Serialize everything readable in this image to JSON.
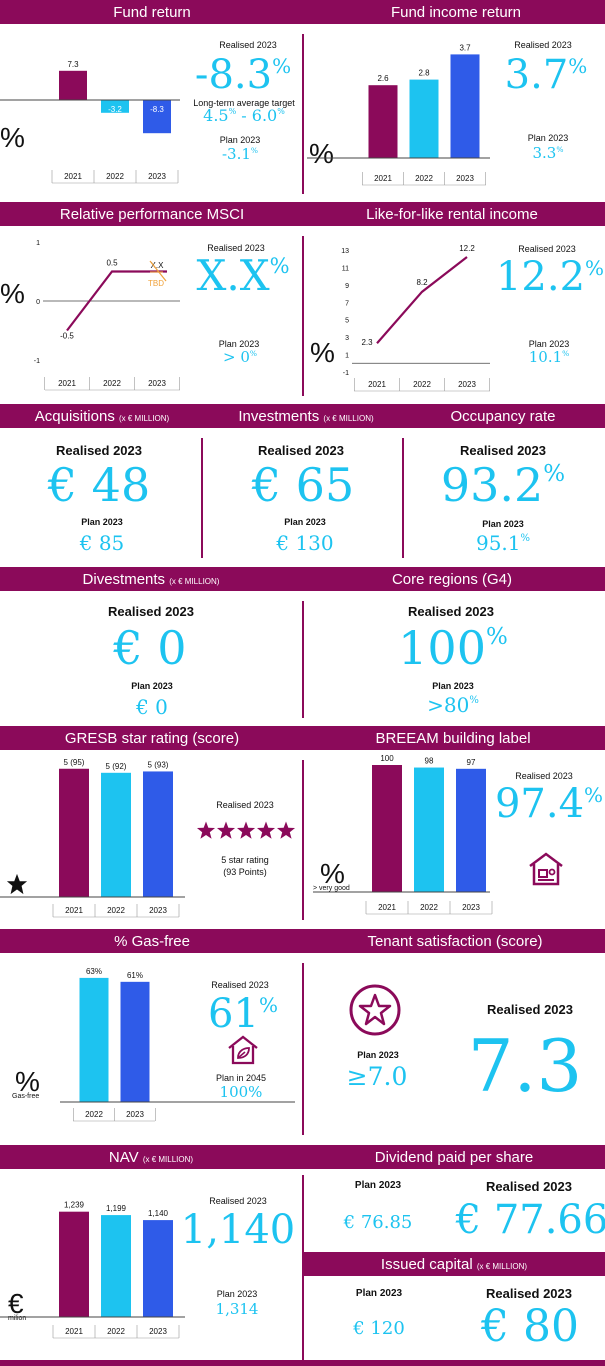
{
  "colors": {
    "brand": "#8b0a5a",
    "cyan": "#1dc3f0",
    "blue": "#2f5be8",
    "orange": "#f0a23b"
  },
  "fund_return": {
    "title": "Fund return",
    "unit": "%",
    "realised_label": "Realised 2023",
    "realised_value": "-8.3",
    "target_label": "Long-term average target",
    "target_low": "4.5",
    "target_high": "6.0",
    "plan_label": "Plan 2023",
    "plan_value": "-3.1"
  },
  "fund_income_return": {
    "title": "Fund income return",
    "unit": "%",
    "realised_label": "Realised 2023",
    "realised_value": "3.7",
    "plan_label": "Plan 2023",
    "plan_value": "3.3"
  },
  "msci": {
    "title": "Relative performance MSCI",
    "unit": "%",
    "realised_label": "Realised 2023",
    "realised_value": "X.X",
    "plan_label": "Plan 2023",
    "plan_value": "> 0",
    "tbd_label": "TBD",
    "xx_label": "X.X"
  },
  "lfl": {
    "title": "Like-for-like rental income",
    "unit": "%",
    "realised_label": "Realised 2023",
    "realised_value": "12.2",
    "plan_label": "Plan 2023",
    "plan_value": "10.1"
  },
  "acquisitions": {
    "title": "Acquisitions",
    "unit_note": "(x € MILLION)",
    "realised_label": "Realised 2023",
    "realised_value": "€ 48",
    "plan_label": "Plan 2023",
    "plan_value": "€ 85"
  },
  "investments": {
    "title": "Investments",
    "unit_note": "(x € MILLION)",
    "realised_label": "Realised 2023",
    "realised_value": "€ 65",
    "plan_label": "Plan 2023",
    "plan_value": "€ 130"
  },
  "occupancy": {
    "title": "Occupancy rate",
    "realised_label": "Realised 2023",
    "realised_value": "93.2",
    "plan_label": "Plan 2023",
    "plan_value": "95.1"
  },
  "divestments": {
    "title": "Divestments",
    "unit_note": "(x € MILLION)",
    "realised_label": "Realised 2023",
    "realised_value": "€ 0",
    "plan_label": "Plan 2023",
    "plan_value": "€ 0"
  },
  "core_regions": {
    "title": "Core regions (G4)",
    "realised_label": "Realised 2023",
    "realised_value": "100",
    "plan_label": "Plan 2023",
    "plan_value": ">80"
  },
  "gresb": {
    "title": "GRESB star rating (score)",
    "realised_label": "Realised 2023",
    "rating_text": "5 star rating",
    "points_text": "(93 Points)",
    "stars": 5
  },
  "breeam": {
    "title": "BREEAM building label",
    "unit": "%",
    "unit_sub": "> very good",
    "realised_label": "Realised 2023",
    "realised_value": "97.4"
  },
  "gas_free": {
    "title": "% Gas-free",
    "unit": "%",
    "unit_sub": "Gas-free",
    "realised_label": "Realised 2023",
    "realised_value": "61",
    "plan_label": "Plan in 2045",
    "plan_value": "100%"
  },
  "tenant": {
    "title": "Tenant satisfaction (score)",
    "plan_label": "Plan 2023",
    "plan_value": "≥7.0",
    "realised_label": "Realised 2023",
    "realised_value": "7.3"
  },
  "nav": {
    "title": "NAV",
    "unit_note": "(x € MILLION)",
    "unit": "€",
    "unit_sub": "milion",
    "realised_label": "Realised 2023",
    "realised_value": "1,140",
    "plan_label": "Plan 2023",
    "plan_value": "1,314"
  },
  "dividend": {
    "title": "Dividend paid per share",
    "plan_label": "Plan 2023",
    "plan_value": "€ 76.85",
    "realised_label": "Realised 2023",
    "realised_value": "€ 77.66"
  },
  "issued": {
    "title": "Issued capital",
    "unit_note": "(x € MILLION)",
    "plan_label": "Plan 2023",
    "plan_value": "€ 120",
    "realised_label": "Realised 2023",
    "realised_value": "€ 80"
  },
  "chart_data": [
    {
      "id": "fund_return",
      "type": "bar",
      "categories": [
        "2021",
        "2022",
        "2023"
      ],
      "values": [
        7.3,
        -3.2,
        -8.3
      ],
      "labels": [
        "7.3",
        "-3.2",
        "-8.3"
      ]
    },
    {
      "id": "fund_income_return",
      "type": "bar",
      "categories": [
        "2021",
        "2022",
        "2023"
      ],
      "values": [
        2.6,
        2.8,
        3.7
      ],
      "labels": [
        "2.6",
        "2.8",
        "3.7"
      ]
    },
    {
      "id": "msci",
      "type": "line",
      "categories": [
        "2021",
        "2022",
        "2023"
      ],
      "values": [
        -0.5,
        0.5,
        0.5
      ],
      "labels": [
        "-0.5",
        "0.5",
        ""
      ],
      "yticks": [
        "1",
        "0",
        "-1"
      ],
      "ylim": [
        -1,
        1
      ]
    },
    {
      "id": "lfl",
      "type": "line",
      "categories": [
        "2021",
        "2022",
        "2023"
      ],
      "values": [
        2.3,
        8.2,
        12.2
      ],
      "labels": [
        "2.3",
        "8.2",
        "12.2"
      ],
      "yticks": [
        "13",
        "11",
        "9",
        "7",
        "5",
        "3",
        "1",
        "-1"
      ],
      "ylim": [
        -1,
        13
      ]
    },
    {
      "id": "gresb",
      "type": "bar",
      "categories": [
        "2021",
        "2022",
        "2023"
      ],
      "values": [
        95,
        92,
        93
      ],
      "labels": [
        "5 (95)",
        "5 (92)",
        "5 (93)"
      ]
    },
    {
      "id": "breeam",
      "type": "bar",
      "categories": [
        "2021",
        "2022",
        "2023"
      ],
      "values": [
        100,
        98,
        97
      ],
      "labels": [
        "100",
        "98",
        "97"
      ]
    },
    {
      "id": "gas_free",
      "type": "bar",
      "categories": [
        "2022",
        "2023"
      ],
      "values": [
        63,
        61
      ],
      "labels": [
        "63%",
        "61%"
      ]
    },
    {
      "id": "nav",
      "type": "bar",
      "categories": [
        "2021",
        "2022",
        "2023"
      ],
      "values": [
        1239,
        1199,
        1140
      ],
      "labels": [
        "1,239",
        "1,199",
        "1,140"
      ]
    }
  ]
}
